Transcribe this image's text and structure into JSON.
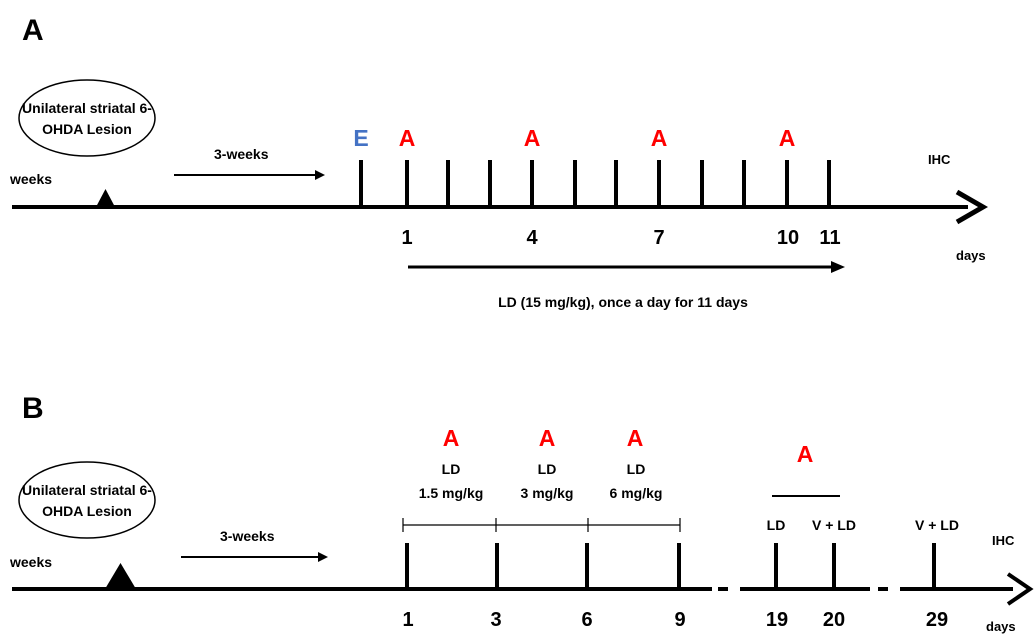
{
  "colors": {
    "line": "#000000",
    "marker_A": "#ff0000",
    "marker_E": "#4472c4",
    "background": "#ffffff"
  },
  "panel_a": {
    "letter": "A",
    "lesion_label": [
      "Unilateral striatal 6-",
      "OHDA Lesion"
    ],
    "weeks_label": "weeks",
    "gap_label": "3-weeks",
    "ihc_label": "IHC",
    "days_label": "days",
    "treatment_label": "LD (15 mg/kg), once a day for 11 days",
    "markers": [
      {
        "text": "E",
        "type": "E"
      },
      {
        "text": "A",
        "type": "A"
      },
      {
        "text": "A",
        "type": "A"
      },
      {
        "text": "A",
        "type": "A"
      },
      {
        "text": "A",
        "type": "A"
      }
    ],
    "day_numbers": [
      "1",
      "4",
      "7",
      "10",
      "11"
    ]
  },
  "panel_b": {
    "letter": "B",
    "lesion_label": [
      "Unilateral striatal 6-",
      "OHDA Lesion"
    ],
    "weeks_label": "weeks",
    "gap_label": "3-weeks",
    "ihc_label": "IHC",
    "days_label": "days",
    "markers": [
      "A",
      "A",
      "A",
      "A"
    ],
    "doses": [
      {
        "drug": "LD",
        "dose": "1.5 mg/kg"
      },
      {
        "drug": "LD",
        "dose": "3 mg/kg"
      },
      {
        "drug": "LD",
        "dose": "6 mg/kg"
      }
    ],
    "tick_labels": [
      "LD",
      "V + LD",
      "V + LD"
    ],
    "day_numbers": [
      "1",
      "3",
      "6",
      "9",
      "19",
      "20",
      "29"
    ]
  }
}
